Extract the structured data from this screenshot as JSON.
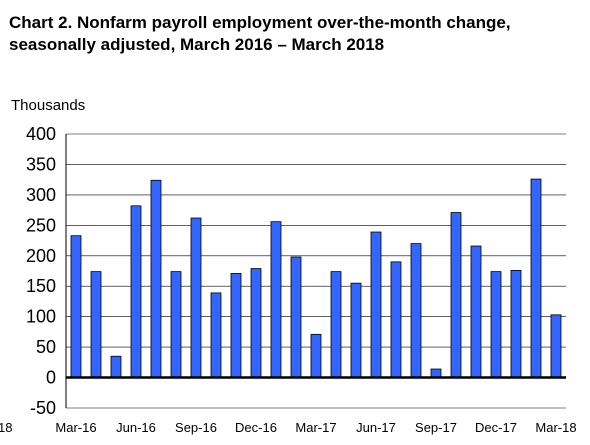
{
  "chart_data": {
    "type": "bar",
    "title_line1": "Chart 2. Nonfarm payroll employment over-the-month change,",
    "title_line2": "seasonally adjusted, March 2016 – March 2018",
    "ylabel": "Thousands",
    "xlabel": "",
    "ylim": [
      -50,
      400
    ],
    "yticks": [
      -50,
      0,
      50,
      100,
      150,
      200,
      250,
      300,
      350,
      400
    ],
    "grid": true,
    "legend": "none",
    "colors": {
      "bar": "#3366ff",
      "bar_edge": "#000000",
      "grid": "#000000",
      "zero_line": "#000000"
    },
    "categories": [
      "Mar-16",
      "Apr-16",
      "May-16",
      "Jun-16",
      "Jul-16",
      "Aug-16",
      "Sep-16",
      "Oct-16",
      "Nov-16",
      "Dec-16",
      "Jan-17",
      "Feb-17",
      "Mar-17",
      "Apr-17",
      "May-17",
      "Jun-17",
      "Jul-17",
      "Aug-17",
      "Sep-17",
      "Oct-17",
      "Nov-17",
      "Dec-17",
      "Jan-18",
      "Feb-18",
      "Mar-18"
    ],
    "values": [
      233,
      174,
      35,
      282,
      324,
      174,
      262,
      139,
      171,
      179,
      256,
      198,
      71,
      174,
      155,
      239,
      190,
      220,
      14,
      271,
      216,
      174,
      176,
      326,
      103
    ],
    "x_tick_labels": [
      {
        "index": 0,
        "label": "Mar-16"
      },
      {
        "index": 3,
        "label": "Jun-16"
      },
      {
        "index": 6,
        "label": "Sep-16"
      },
      {
        "index": 9,
        "label": "Dec-16"
      },
      {
        "index": 12,
        "label": "Mar-17"
      },
      {
        "index": 15,
        "label": "Jun-17"
      },
      {
        "index": 18,
        "label": "Sep-17"
      },
      {
        "index": 21,
        "label": "Dec-17"
      },
      {
        "index": 24,
        "label": "Mar-18"
      }
    ],
    "stray_label": "18"
  }
}
